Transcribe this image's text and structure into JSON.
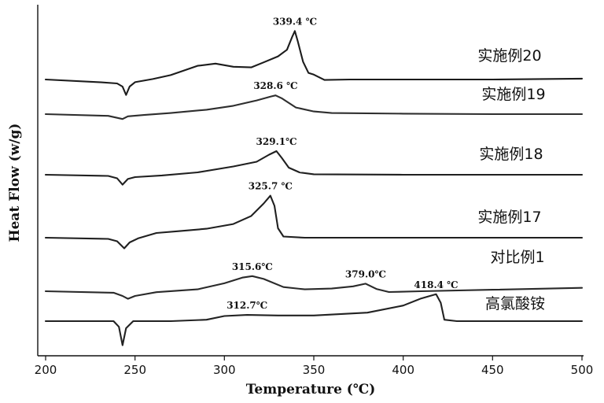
{
  "chart_data": {
    "type": "line",
    "title": "",
    "xlabel": "Temperature (℃)",
    "ylabel": "Heat Flow (w/g)",
    "xlim": [
      200,
      500
    ],
    "xticks": [
      "200",
      "250",
      "300",
      "350",
      "400",
      "450",
      "500"
    ],
    "grid": false,
    "legend": "inline-right",
    "series": [
      {
        "name": "实施例20",
        "offset": 5,
        "points": [
          [
            200,
            0.0
          ],
          [
            230,
            -0.12
          ],
          [
            240,
            -0.18
          ],
          [
            243,
            -0.32
          ],
          [
            245,
            -0.7
          ],
          [
            247,
            -0.32
          ],
          [
            250,
            -0.12
          ],
          [
            260,
            0.02
          ],
          [
            270,
            0.2
          ],
          [
            285,
            0.62
          ],
          [
            295,
            0.72
          ],
          [
            305,
            0.58
          ],
          [
            315,
            0.55
          ],
          [
            322,
            0.78
          ],
          [
            330,
            1.05
          ],
          [
            335,
            1.35
          ],
          [
            338,
            1.95
          ],
          [
            339.4,
            2.2
          ],
          [
            341,
            1.75
          ],
          [
            344,
            0.8
          ],
          [
            347,
            0.3
          ],
          [
            350,
            0.22
          ],
          [
            356,
            -0.02
          ],
          [
            370,
            0.0
          ],
          [
            400,
            0.0
          ],
          [
            450,
            0.0
          ],
          [
            500,
            0.04
          ]
        ],
        "peaks": [
          {
            "x": 339.4,
            "label": "339.4 ℃"
          }
        ]
      },
      {
        "name": "实施例19",
        "offset": 4,
        "points": [
          [
            200,
            0.0
          ],
          [
            235,
            -0.08
          ],
          [
            243,
            -0.22
          ],
          [
            246,
            -0.1
          ],
          [
            255,
            -0.04
          ],
          [
            270,
            0.05
          ],
          [
            290,
            0.2
          ],
          [
            305,
            0.38
          ],
          [
            318,
            0.62
          ],
          [
            326,
            0.8
          ],
          [
            328.6,
            0.85
          ],
          [
            332,
            0.72
          ],
          [
            340,
            0.3
          ],
          [
            350,
            0.12
          ],
          [
            360,
            0.05
          ],
          [
            400,
            0.02
          ],
          [
            450,
            0.0
          ],
          [
            500,
            0.0
          ]
        ],
        "peaks": [
          {
            "x": 328.6,
            "label": "328.6 ℃"
          }
        ]
      },
      {
        "name": "实施例18",
        "offset": 3,
        "points": [
          [
            200,
            0.0
          ],
          [
            235,
            -0.05
          ],
          [
            240,
            -0.15
          ],
          [
            243,
            -0.42
          ],
          [
            246,
            -0.18
          ],
          [
            250,
            -0.1
          ],
          [
            265,
            -0.03
          ],
          [
            285,
            0.1
          ],
          [
            305,
            0.35
          ],
          [
            318,
            0.55
          ],
          [
            325,
            0.85
          ],
          [
            329.1,
            1.0
          ],
          [
            332,
            0.72
          ],
          [
            336,
            0.3
          ],
          [
            342,
            0.1
          ],
          [
            350,
            0.02
          ],
          [
            400,
            0.0
          ],
          [
            450,
            0.0
          ],
          [
            500,
            0.0
          ]
        ],
        "peaks": [
          {
            "x": 329.1,
            "label": "329.1℃"
          }
        ]
      },
      {
        "name": "实施例17",
        "offset": 2,
        "points": [
          [
            200,
            0.0
          ],
          [
            235,
            -0.05
          ],
          [
            240,
            -0.15
          ],
          [
            244,
            -0.45
          ],
          [
            247,
            -0.2
          ],
          [
            252,
            -0.02
          ],
          [
            262,
            0.2
          ],
          [
            275,
            0.28
          ],
          [
            290,
            0.38
          ],
          [
            305,
            0.58
          ],
          [
            315,
            0.92
          ],
          [
            322,
            1.45
          ],
          [
            325.7,
            1.78
          ],
          [
            328,
            1.35
          ],
          [
            330,
            0.4
          ],
          [
            333,
            0.05
          ],
          [
            345,
            0.0
          ],
          [
            400,
            0.0
          ],
          [
            450,
            0.0
          ],
          [
            500,
            0.0
          ]
        ],
        "peaks": [
          {
            "x": 325.7,
            "label": "325.7 ℃"
          }
        ]
      },
      {
        "name": "对比例1",
        "offset": 1,
        "points": [
          [
            200,
            0.0
          ],
          [
            238,
            -0.08
          ],
          [
            243,
            -0.25
          ],
          [
            246,
            -0.4
          ],
          [
            250,
            -0.25
          ],
          [
            262,
            -0.05
          ],
          [
            285,
            0.1
          ],
          [
            300,
            0.42
          ],
          [
            310,
            0.72
          ],
          [
            315.6,
            0.8
          ],
          [
            322,
            0.65
          ],
          [
            333,
            0.22
          ],
          [
            345,
            0.1
          ],
          [
            360,
            0.14
          ],
          [
            372,
            0.26
          ],
          [
            379,
            0.4
          ],
          [
            385,
            0.12
          ],
          [
            392,
            -0.04
          ],
          [
            410,
            0.0
          ],
          [
            450,
            0.08
          ],
          [
            500,
            0.18
          ]
        ],
        "peaks": [
          {
            "x": 315.6,
            "label": "315.6℃"
          },
          {
            "x": 379.0,
            "label": "379.0℃"
          }
        ]
      },
      {
        "name": "高氯酸铵",
        "offset": 0,
        "points": [
          [
            200,
            0.0
          ],
          [
            238,
            0.0
          ],
          [
            241,
            -0.2
          ],
          [
            243,
            -0.85
          ],
          [
            245,
            -0.25
          ],
          [
            249,
            0.0
          ],
          [
            270,
            0.0
          ],
          [
            290,
            0.05
          ],
          [
            300,
            0.18
          ],
          [
            312.7,
            0.22
          ],
          [
            330,
            0.2
          ],
          [
            350,
            0.2
          ],
          [
            380,
            0.3
          ],
          [
            400,
            0.55
          ],
          [
            410,
            0.8
          ],
          [
            418.4,
            0.95
          ],
          [
            421,
            0.65
          ],
          [
            423,
            0.05
          ],
          [
            430,
            0.0
          ],
          [
            450,
            0.0
          ],
          [
            500,
            0.0
          ]
        ],
        "peaks": [
          {
            "x": 312.7,
            "label": "312.7℃"
          },
          {
            "x": 418.4,
            "label": "418.4 ℃"
          }
        ]
      }
    ]
  }
}
